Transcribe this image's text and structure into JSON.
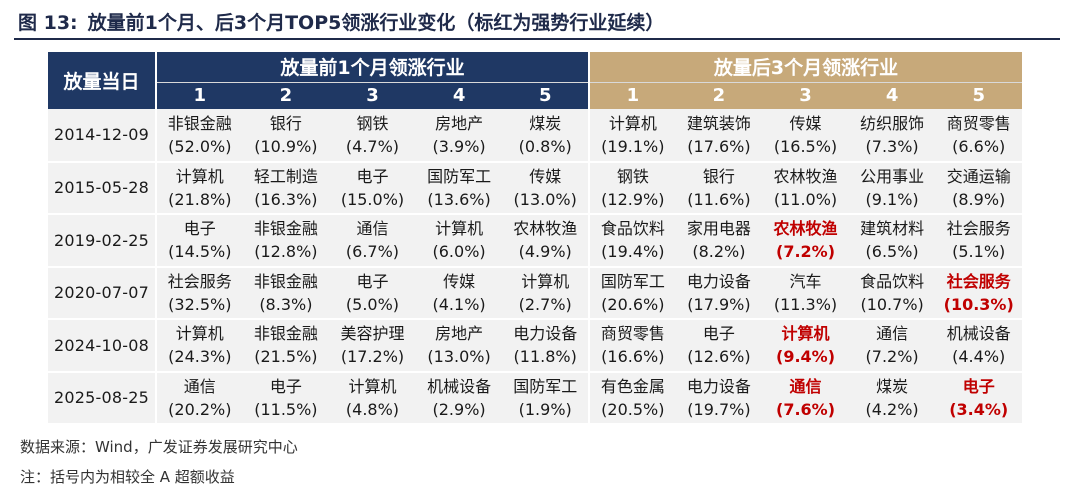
{
  "figure": {
    "number": "图 13:",
    "title": "放量前1个月、后3个月TOP5领涨行业变化（标红为强势行业延续）"
  },
  "table": {
    "corner_header": "放量当日",
    "group_before": "放量前1个月领涨行业",
    "group_after": "放量后3个月领涨行业",
    "rank_labels": [
      "1",
      "2",
      "3",
      "4",
      "5"
    ],
    "rows": [
      {
        "date": "2014-12-09",
        "before": [
          {
            "name": "非银金融",
            "pct": "(52.0%)"
          },
          {
            "name": "银行",
            "pct": "(10.9%)"
          },
          {
            "name": "钢铁",
            "pct": "(4.7%)"
          },
          {
            "name": "房地产",
            "pct": "(3.9%)"
          },
          {
            "name": "煤炭",
            "pct": "(0.8%)"
          }
        ],
        "after": [
          {
            "name": "计算机",
            "pct": "(19.1%)",
            "highlight": false
          },
          {
            "name": "建筑装饰",
            "pct": "(17.6%)",
            "highlight": false
          },
          {
            "name": "传媒",
            "pct": "(16.5%)",
            "highlight": false
          },
          {
            "name": "纺织服饰",
            "pct": "(7.3%)",
            "highlight": false
          },
          {
            "name": "商贸零售",
            "pct": "(6.6%)",
            "highlight": false
          }
        ]
      },
      {
        "date": "2015-05-28",
        "before": [
          {
            "name": "计算机",
            "pct": "(21.8%)"
          },
          {
            "name": "轻工制造",
            "pct": "(16.3%)"
          },
          {
            "name": "电子",
            "pct": "(15.0%)"
          },
          {
            "name": "国防军工",
            "pct": "(13.6%)"
          },
          {
            "name": "传媒",
            "pct": "(13.0%)"
          }
        ],
        "after": [
          {
            "name": "钢铁",
            "pct": "(12.9%)",
            "highlight": false
          },
          {
            "name": "银行",
            "pct": "(11.6%)",
            "highlight": false
          },
          {
            "name": "农林牧渔",
            "pct": "(11.0%)",
            "highlight": false
          },
          {
            "name": "公用事业",
            "pct": "(9.1%)",
            "highlight": false
          },
          {
            "name": "交通运输",
            "pct": "(8.9%)",
            "highlight": false
          }
        ]
      },
      {
        "date": "2019-02-25",
        "before": [
          {
            "name": "电子",
            "pct": "(14.5%)"
          },
          {
            "name": "非银金融",
            "pct": "(12.8%)"
          },
          {
            "name": "通信",
            "pct": "(6.7%)"
          },
          {
            "name": "计算机",
            "pct": "(6.0%)"
          },
          {
            "name": "农林牧渔",
            "pct": "(4.9%)"
          }
        ],
        "after": [
          {
            "name": "食品饮料",
            "pct": "(19.4%)",
            "highlight": false
          },
          {
            "name": "家用电器",
            "pct": "(8.2%)",
            "highlight": false
          },
          {
            "name": "农林牧渔",
            "pct": "(7.2%)",
            "highlight": true
          },
          {
            "name": "建筑材料",
            "pct": "(6.5%)",
            "highlight": false
          },
          {
            "name": "社会服务",
            "pct": "(5.1%)",
            "highlight": false
          }
        ]
      },
      {
        "date": "2020-07-07",
        "before": [
          {
            "name": "社会服务",
            "pct": "(32.5%)"
          },
          {
            "name": "非银金融",
            "pct": "(8.3%)"
          },
          {
            "name": "电子",
            "pct": "(5.0%)"
          },
          {
            "name": "传媒",
            "pct": "(4.1%)"
          },
          {
            "name": "计算机",
            "pct": "(2.7%)"
          }
        ],
        "after": [
          {
            "name": "国防军工",
            "pct": "(20.6%)",
            "highlight": false
          },
          {
            "name": "电力设备",
            "pct": "(17.9%)",
            "highlight": false
          },
          {
            "name": "汽车",
            "pct": "(11.3%)",
            "highlight": false
          },
          {
            "name": "食品饮料",
            "pct": "(10.7%)",
            "highlight": false
          },
          {
            "name": "社会服务",
            "pct": "(10.3%)",
            "highlight": true
          }
        ]
      },
      {
        "date": "2024-10-08",
        "before": [
          {
            "name": "计算机",
            "pct": "(24.3%)"
          },
          {
            "name": "非银金融",
            "pct": "(21.5%)"
          },
          {
            "name": "美容护理",
            "pct": "(17.2%)"
          },
          {
            "name": "房地产",
            "pct": "(13.0%)"
          },
          {
            "name": "电力设备",
            "pct": "(11.8%)"
          }
        ],
        "after": [
          {
            "name": "商贸零售",
            "pct": "(16.6%)",
            "highlight": false
          },
          {
            "name": "电子",
            "pct": "(12.6%)",
            "highlight": false
          },
          {
            "name": "计算机",
            "pct": "(9.4%)",
            "highlight": true
          },
          {
            "name": "通信",
            "pct": "(7.2%)",
            "highlight": false
          },
          {
            "name": "机械设备",
            "pct": "(4.4%)",
            "highlight": false
          }
        ]
      },
      {
        "date": "2025-08-25",
        "before": [
          {
            "name": "通信",
            "pct": "(20.2%)"
          },
          {
            "name": "电子",
            "pct": "(11.5%)"
          },
          {
            "name": "计算机",
            "pct": "(4.8%)"
          },
          {
            "name": "机械设备",
            "pct": "(2.9%)"
          },
          {
            "name": "国防军工",
            "pct": "(1.9%)"
          }
        ],
        "after": [
          {
            "name": "有色金属",
            "pct": "(20.5%)",
            "highlight": false
          },
          {
            "name": "电力设备",
            "pct": "(19.7%)",
            "highlight": false
          },
          {
            "name": "通信",
            "pct": "(7.6%)",
            "highlight": true
          },
          {
            "name": "煤炭",
            "pct": "(4.2%)",
            "highlight": false
          },
          {
            "name": "电子",
            "pct": "(3.4%)",
            "highlight": true
          }
        ]
      }
    ]
  },
  "footer": {
    "source": "数据来源：Wind，广发证券发展研究中心",
    "note": "注：括号内为相较全 A 超额收益"
  },
  "colors": {
    "header_before": "#1f3864",
    "header_after": "#c7a97a",
    "highlight": "#c00000",
    "row_bg": "#f2f2f2"
  }
}
